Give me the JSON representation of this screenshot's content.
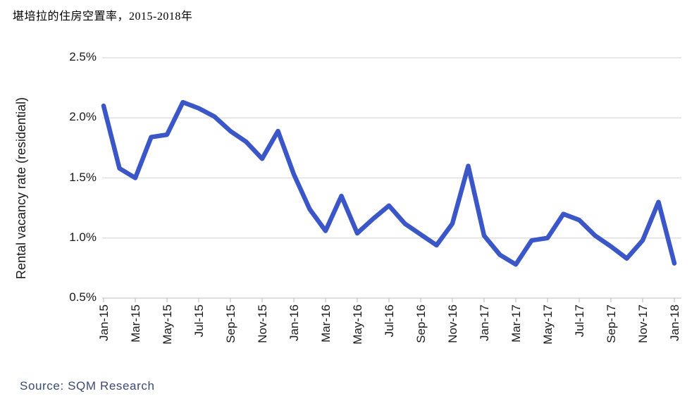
{
  "title": "堪培拉的住房空置率，2015-2018年",
  "source": "Source: SQM Research",
  "chart_data": {
    "type": "line",
    "title": "堪培拉的住房空置率，2015-2018年",
    "categories": [
      "Jan-15",
      "Feb-15",
      "Mar-15",
      "Apr-15",
      "May-15",
      "Jun-15",
      "Jul-15",
      "Aug-15",
      "Sep-15",
      "Oct-15",
      "Nov-15",
      "Dec-15",
      "Jan-16",
      "Feb-16",
      "Mar-16",
      "Apr-16",
      "May-16",
      "Jun-16",
      "Jul-16",
      "Aug-16",
      "Sep-16",
      "Oct-16",
      "Nov-16",
      "Dec-16",
      "Jan-17",
      "Feb-17",
      "Mar-17",
      "Apr-17",
      "May-17",
      "Jun-17",
      "Jul-17",
      "Aug-17",
      "Sep-17",
      "Oct-17",
      "Nov-17",
      "Dec-17",
      "Jan-18"
    ],
    "values": [
      2.1,
      1.58,
      1.5,
      1.84,
      1.86,
      2.13,
      2.08,
      2.01,
      1.89,
      1.8,
      1.66,
      1.89,
      1.53,
      1.24,
      1.06,
      1.35,
      1.04,
      1.16,
      1.27,
      1.12,
      1.03,
      0.94,
      1.12,
      1.6,
      1.02,
      0.86,
      0.78,
      0.98,
      1.0,
      1.2,
      1.15,
      1.02,
      0.93,
      0.83,
      0.98,
      1.3,
      0.79
    ],
    "x_tick_labels": [
      "Jan-15",
      "Mar-15",
      "May-15",
      "Jul-15",
      "Sep-15",
      "Nov-15",
      "Jan-16",
      "Mar-16",
      "May-16",
      "Jul-16",
      "Sep-16",
      "Nov-16",
      "Jan-17",
      "Mar-17",
      "May-17",
      "Jul-17",
      "Sep-17",
      "Nov-17",
      "Jan-18"
    ],
    "y_ticks": [
      "0.5%",
      "1.0%",
      "1.5%",
      "2.0%",
      "2.5%"
    ],
    "y_tick_values": [
      0.5,
      1.0,
      1.5,
      2.0,
      2.5
    ],
    "xlabel": "",
    "ylabel": "Rental vacancy rate (residential)",
    "ylim": [
      0.5,
      2.5
    ],
    "grid": true,
    "legend": false,
    "line_color": "#3b57c7",
    "grid_color": "#d9d9d9",
    "axis_color": "#c9c9c9"
  }
}
